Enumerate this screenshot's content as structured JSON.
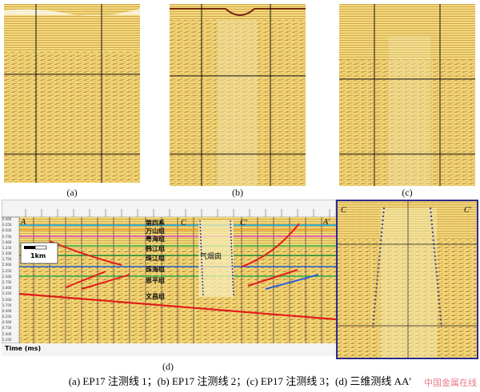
{
  "panels": {
    "a": {
      "label": "(a)"
    },
    "b": {
      "label": "(b)"
    },
    "c": {
      "label": "(c)"
    },
    "d": {
      "label": "(d)"
    }
  },
  "section_d": {
    "endpoint_left": "A",
    "endpoint_right": "A'",
    "marker_c1": "C",
    "marker_c2": "C'",
    "scale_bar": "1km",
    "time_axis_label": "Time (ms)",
    "chimney_label": "气烟囱",
    "time_ticks": [
      "0.000",
      "0.250",
      "0.500",
      "0.750",
      "1.000",
      "1.250",
      "1.500",
      "1.750",
      "2.000",
      "2.250",
      "2.500",
      "2.750",
      "3.000",
      "3.250",
      "3.500",
      "3.750",
      "4.000",
      "4.250",
      "4.500",
      "4.750",
      "5.000",
      "5.250"
    ],
    "formations": [
      "第四系",
      "万山组",
      "粤海组",
      "韩江组",
      "珠江组",
      "珠海组",
      "恩平组",
      "文昌组"
    ]
  },
  "zoom_panel": {
    "marker_c1": "C",
    "marker_c2": "C'"
  },
  "caption": "(a) EP17 注测线 1；(b) EP17 注测线 2；(c) EP17 注测线 3；(d)  三维测线 AA′",
  "watermark": "中国金属在线",
  "colors": {
    "seismic_bg": "#f3dc78",
    "grid": "#111111",
    "fault": "#e21c1c",
    "zoom_frame": "#2c2c8c",
    "chimney_outline": "#3a3aa0"
  }
}
